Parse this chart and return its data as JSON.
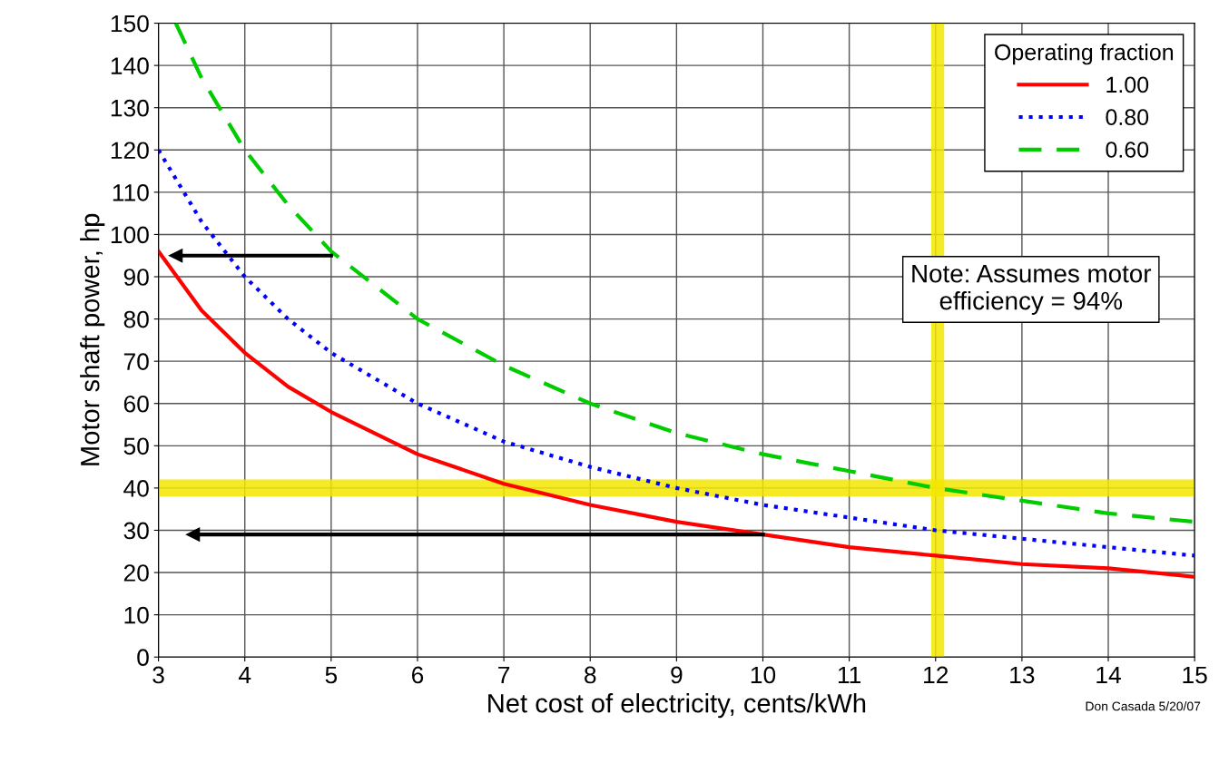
{
  "chart_data": {
    "type": "line",
    "xlabel": "Net cost of electricity, cents/kWh",
    "ylabel": "Motor shaft power, hp",
    "legend_title": "Operating fraction",
    "legend": "top right",
    "grid": true,
    "xlim": [
      3,
      15
    ],
    "xticks": [
      3,
      4,
      5,
      6,
      7,
      8,
      9,
      10,
      11,
      12,
      13,
      14,
      15
    ],
    "ylim": [
      0,
      150
    ],
    "yticks": [
      0,
      10,
      20,
      30,
      40,
      50,
      60,
      70,
      80,
      90,
      100,
      110,
      120,
      130,
      140,
      150
    ],
    "series": [
      {
        "name": "1.00",
        "color": "#ff0000",
        "line_style": "solid",
        "x": [
          3,
          3.5,
          4,
          4.5,
          5,
          6,
          7,
          8,
          9,
          10,
          11,
          12,
          13,
          14,
          15
        ],
        "values": [
          96,
          82,
          72,
          64,
          58,
          48,
          41,
          36,
          32,
          29,
          26,
          24,
          22,
          21,
          19
        ]
      },
      {
        "name": "0.80",
        "color": "#0000ff",
        "line_style": "dotted",
        "x": [
          3,
          3.5,
          4,
          4.5,
          5,
          6,
          7,
          8,
          9,
          10,
          11,
          12,
          13,
          14,
          15
        ],
        "values": [
          120,
          103,
          90,
          80,
          72,
          60,
          51,
          45,
          40,
          36,
          33,
          30,
          28,
          26,
          24
        ]
      },
      {
        "name": "0.60",
        "color": "#00cc00",
        "line_style": "dashed",
        "x": [
          3.2,
          3.5,
          4,
          4.5,
          5,
          6,
          7,
          8,
          9,
          10,
          11,
          12,
          13,
          14,
          15
        ],
        "values": [
          150,
          137,
          120,
          107,
          96,
          80,
          69,
          60,
          53,
          48,
          44,
          40,
          37,
          34,
          32
        ]
      },
      {
        "color": "#000000",
        "line_style": "solid",
        "marker": "triangle",
        "x": [
          3.2,
          5
        ],
        "values": [
          95,
          95
        ]
      },
      {
        "color": "#000000",
        "line_style": "solid",
        "marker": "triangle",
        "x": [
          3.4,
          10
        ],
        "values": [
          29,
          29
        ]
      }
    ],
    "bands": [
      {
        "axis": "y",
        "from": 38,
        "to": 42,
        "color": "#f2e600"
      },
      {
        "axis": "x",
        "from": 11.95,
        "to": 12.1,
        "color": "#f2e600"
      }
    ],
    "annotations": [
      "Note: Assumes motor\nefficiency = 94%",
      "Don Casada 5/20/07"
    ]
  }
}
